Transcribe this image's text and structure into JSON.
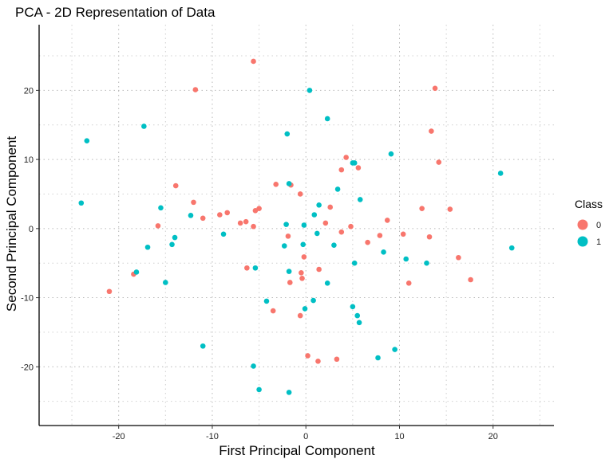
{
  "chart_data": {
    "type": "scatter",
    "title": "PCA - 2D Representation of Data",
    "xlabel": "First Principal Component",
    "ylabel": "Second Principal Component",
    "xlim": [
      -28.5,
      26.5
    ],
    "ylim": [
      -28.5,
      29.5
    ],
    "xticks": [
      -20,
      -10,
      0,
      10,
      20
    ],
    "yticks": [
      -20,
      -10,
      0,
      10,
      20
    ],
    "grid": true,
    "legend": {
      "title": "Class",
      "position": "right"
    },
    "series": [
      {
        "name": "0",
        "color": "#f8766d",
        "points": [
          [
            -5.6,
            24.2
          ],
          [
            -11.8,
            20.1
          ],
          [
            13.8,
            20.3
          ],
          [
            13.4,
            14.1
          ],
          [
            14.2,
            9.6
          ],
          [
            4.3,
            10.3
          ],
          [
            5.6,
            8.8
          ],
          [
            3.8,
            8.5
          ],
          [
            -3.2,
            6.4
          ],
          [
            -1.6,
            6.3
          ],
          [
            -13.9,
            6.2
          ],
          [
            -0.6,
            5.0
          ],
          [
            2.6,
            3.1
          ],
          [
            -12.0,
            3.8
          ],
          [
            -5.0,
            2.9
          ],
          [
            -5.4,
            2.6
          ],
          [
            -8.4,
            2.3
          ],
          [
            -9.2,
            2.0
          ],
          [
            -11.0,
            1.5
          ],
          [
            -6.4,
            1.0
          ],
          [
            -7.0,
            0.8
          ],
          [
            -5.6,
            0.3
          ],
          [
            -15.8,
            0.4
          ],
          [
            2.1,
            0.8
          ],
          [
            4.8,
            0.3
          ],
          [
            8.7,
            1.2
          ],
          [
            12.4,
            2.9
          ],
          [
            15.4,
            2.8
          ],
          [
            3.8,
            -0.5
          ],
          [
            -1.9,
            -1.1
          ],
          [
            7.9,
            -1.0
          ],
          [
            10.4,
            -0.8
          ],
          [
            13.2,
            -1.2
          ],
          [
            6.6,
            -2.0
          ],
          [
            -0.2,
            -4.1
          ],
          [
            16.3,
            -4.2
          ],
          [
            -6.3,
            -5.7
          ],
          [
            1.4,
            -5.9
          ],
          [
            -0.5,
            -6.4
          ],
          [
            -0.4,
            -7.2
          ],
          [
            -1.7,
            -7.8
          ],
          [
            11.0,
            -7.9
          ],
          [
            17.6,
            -7.4
          ],
          [
            -18.4,
            -6.6
          ],
          [
            -21.0,
            -9.1
          ],
          [
            -3.5,
            -11.9
          ],
          [
            -0.6,
            -12.6
          ],
          [
            0.2,
            -18.4
          ],
          [
            1.3,
            -19.2
          ],
          [
            3.3,
            -18.9
          ]
        ]
      },
      {
        "name": "1",
        "color": "#00bfc4",
        "points": [
          [
            0.4,
            20.0
          ],
          [
            -17.3,
            14.8
          ],
          [
            2.3,
            15.9
          ],
          [
            -2.0,
            13.7
          ],
          [
            -23.4,
            12.7
          ],
          [
            9.1,
            10.8
          ],
          [
            5.0,
            9.5
          ],
          [
            5.2,
            9.5
          ],
          [
            20.8,
            8.0
          ],
          [
            -1.8,
            6.5
          ],
          [
            3.4,
            5.7
          ],
          [
            5.8,
            4.2
          ],
          [
            -24.0,
            3.7
          ],
          [
            1.4,
            3.4
          ],
          [
            -15.5,
            3.0
          ],
          [
            0.9,
            2.0
          ],
          [
            -12.3,
            1.9
          ],
          [
            -2.1,
            0.6
          ],
          [
            -0.2,
            0.5
          ],
          [
            1.2,
            -0.7
          ],
          [
            -8.8,
            -0.8
          ],
          [
            -14.0,
            -1.3
          ],
          [
            -2.3,
            -2.5
          ],
          [
            -0.3,
            -2.3
          ],
          [
            3.0,
            -2.4
          ],
          [
            -14.3,
            -2.3
          ],
          [
            -16.9,
            -2.7
          ],
          [
            22.0,
            -2.8
          ],
          [
            8.3,
            -3.4
          ],
          [
            10.7,
            -4.4
          ],
          [
            12.9,
            -5.0
          ],
          [
            5.2,
            -5.0
          ],
          [
            -5.4,
            -5.7
          ],
          [
            -1.8,
            -6.2
          ],
          [
            -18.1,
            -6.3
          ],
          [
            -15.0,
            -7.8
          ],
          [
            2.3,
            -7.9
          ],
          [
            -4.2,
            -10.5
          ],
          [
            0.8,
            -10.4
          ],
          [
            -0.1,
            -11.6
          ],
          [
            5.0,
            -11.3
          ],
          [
            5.5,
            -12.6
          ],
          [
            5.7,
            -13.6
          ],
          [
            -11.0,
            -17.0
          ],
          [
            9.5,
            -17.5
          ],
          [
            7.7,
            -18.7
          ],
          [
            -5.6,
            -19.9
          ],
          [
            -1.8,
            -23.7
          ],
          [
            -5.0,
            -23.3
          ]
        ]
      }
    ]
  }
}
